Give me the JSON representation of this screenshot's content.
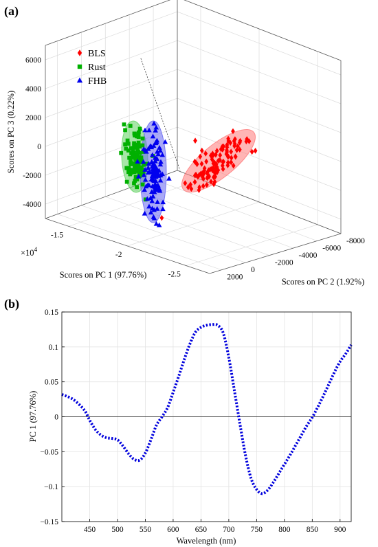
{
  "figure": {
    "panel_a_label": "(a)",
    "panel_b_label": "(b)"
  },
  "chart_data": [
    {
      "type": "scatter",
      "panel": "(a)",
      "title": "",
      "xlabel": "Scores on PC 1 (97.76%)",
      "ylabel": "Scores on PC 2 (1.92%)",
      "zlabel": "Scores on PC 3 (0.22%)",
      "x_exponent_label": "×10",
      "x_exponent_power": "4",
      "x_ticks": [
        "-1.5",
        "-2",
        "-2.5"
      ],
      "x_tick_values": [
        -15000,
        -20000,
        -25000
      ],
      "y_ticks": [
        "2000",
        "0",
        "-2000",
        "-4000",
        "-6000",
        "-8000"
      ],
      "y_tick_values": [
        2000,
        0,
        -2000,
        -4000,
        -6000,
        -8000
      ],
      "z_ticks": [
        "6000",
        "4000",
        "2000",
        "0",
        "-2000",
        "-4000"
      ],
      "z_tick_values": [
        6000,
        4000,
        2000,
        0,
        -2000,
        -4000
      ],
      "xlim": [
        -27000,
        -13000
      ],
      "ylim": [
        -8000,
        3000
      ],
      "zlim": [
        -5000,
        7000
      ],
      "grid": true,
      "legend_position": "top-left",
      "series": [
        {
          "name": "BLS",
          "color": "#ff0000",
          "marker": "diamond",
          "ellipse_color": "#ff7878",
          "center": [
            -24000,
            -4200,
            -800
          ],
          "count": 110
        },
        {
          "name": "Rust",
          "color": "#00b000",
          "marker": "square",
          "ellipse_color": "#5fd25f",
          "center": [
            -18500,
            1000,
            -300
          ],
          "count": 95
        },
        {
          "name": "FHB",
          "color": "#0000ee",
          "marker": "triangle",
          "ellipse_color": "#6464f0",
          "center": [
            -20000,
            700,
            -1200
          ],
          "count": 110
        }
      ]
    },
    {
      "type": "line",
      "panel": "(b)",
      "title": "",
      "xlabel": "Wavelength (nm)",
      "ylabel": "PC 1 (97.76%)",
      "xlim": [
        400,
        920
      ],
      "ylim": [
        -0.15,
        0.15
      ],
      "x_ticks": [
        450,
        500,
        550,
        600,
        650,
        700,
        750,
        800,
        850,
        900
      ],
      "y_ticks": [
        -0.15,
        -0.1,
        -0.05,
        0,
        0.05,
        0.1,
        0.15
      ],
      "y_tick_labels": [
        "−0.15",
        "−0.1",
        "−0.05",
        "0",
        "0.05",
        "0.1",
        "0.15"
      ],
      "grid": true,
      "series": [
        {
          "name": "",
          "color": "#0000dd",
          "style": "dotted",
          "x": [
            400,
            420,
            440,
            450,
            460,
            470,
            480,
            490,
            500,
            510,
            520,
            530,
            540,
            550,
            560,
            570,
            580,
            590,
            600,
            610,
            620,
            630,
            640,
            650,
            660,
            670,
            680,
            690,
            700,
            710,
            720,
            730,
            740,
            750,
            760,
            770,
            780,
            790,
            800,
            810,
            820,
            830,
            840,
            850,
            860,
            870,
            880,
            890,
            900,
            910,
            920
          ],
          "y": [
            0.032,
            0.025,
            0.01,
            -0.005,
            -0.018,
            -0.026,
            -0.03,
            -0.031,
            -0.033,
            -0.042,
            -0.053,
            -0.061,
            -0.062,
            -0.052,
            -0.033,
            -0.012,
            0.0,
            0.013,
            0.035,
            0.058,
            0.082,
            0.104,
            0.121,
            0.128,
            0.131,
            0.132,
            0.131,
            0.12,
            0.085,
            0.038,
            -0.01,
            -0.055,
            -0.088,
            -0.104,
            -0.11,
            -0.105,
            -0.094,
            -0.081,
            -0.068,
            -0.055,
            -0.041,
            -0.027,
            -0.013,
            -0.001,
            0.014,
            0.03,
            0.047,
            0.064,
            0.079,
            0.09,
            0.103
          ]
        }
      ]
    }
  ]
}
